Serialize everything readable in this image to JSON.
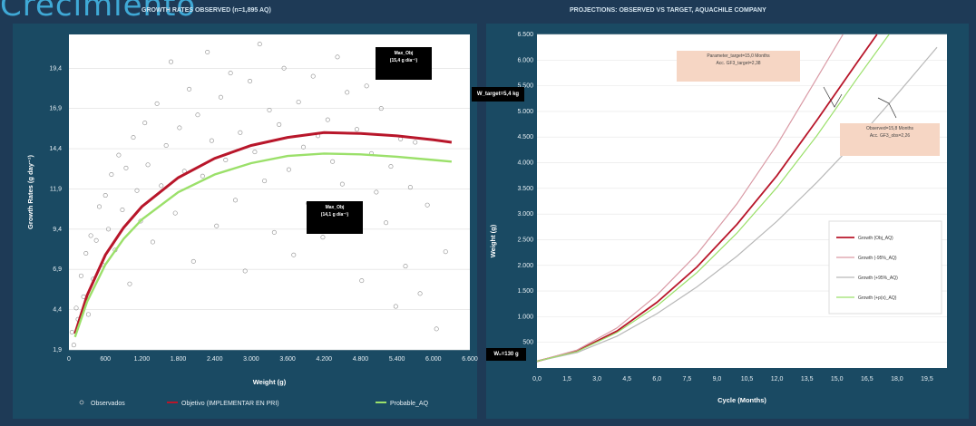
{
  "header": {
    "title": "Crecimiento"
  },
  "chart_data": [
    {
      "type": "scatter",
      "title": "GROWTH RATES OBSERVED (n=1,895 AQ)",
      "xlabel": "Weight (g)",
      "ylabel": "Growth Rates (g day⁻¹)",
      "xlim": [
        0,
        6600
      ],
      "ylim": [
        1.9,
        21.5
      ],
      "x_ticks": [
        "0",
        "600",
        "1.200",
        "1.800",
        "2.400",
        "3.000",
        "3.600",
        "4.200",
        "4.800",
        "5.400",
        "6.000",
        "6.600"
      ],
      "y_ticks": [
        "1,9",
        "4,4",
        "6,9",
        "9,4",
        "11,9",
        "14,4",
        "16,9",
        "19,4"
      ],
      "legend_position": "bottom",
      "series": [
        {
          "name": "Observados",
          "kind": "scatter",
          "color": "#cfcfcf",
          "points": [
            [
              50,
              3.0
            ],
            [
              80,
              2.2
            ],
            [
              120,
              4.5
            ],
            [
              150,
              3.8
            ],
            [
              200,
              6.5
            ],
            [
              240,
              5.2
            ],
            [
              280,
              7.9
            ],
            [
              320,
              4.1
            ],
            [
              360,
              9.0
            ],
            [
              400,
              6.3
            ],
            [
              450,
              8.7
            ],
            [
              500,
              10.8
            ],
            [
              550,
              7.2
            ],
            [
              600,
              11.5
            ],
            [
              650,
              9.4
            ],
            [
              700,
              12.8
            ],
            [
              760,
              8.1
            ],
            [
              820,
              14.0
            ],
            [
              880,
              10.6
            ],
            [
              940,
              13.2
            ],
            [
              1000,
              6.0
            ],
            [
              1060,
              15.1
            ],
            [
              1120,
              11.8
            ],
            [
              1180,
              9.9
            ],
            [
              1250,
              16.0
            ],
            [
              1300,
              13.4
            ],
            [
              1380,
              8.6
            ],
            [
              1450,
              17.2
            ],
            [
              1520,
              12.1
            ],
            [
              1600,
              14.6
            ],
            [
              1680,
              19.8
            ],
            [
              1750,
              10.4
            ],
            [
              1820,
              15.7
            ],
            [
              1900,
              13.0
            ],
            [
              1980,
              18.1
            ],
            [
              2050,
              7.4
            ],
            [
              2120,
              16.5
            ],
            [
              2200,
              12.7
            ],
            [
              2280,
              20.4
            ],
            [
              2350,
              14.9
            ],
            [
              2430,
              9.6
            ],
            [
              2500,
              17.6
            ],
            [
              2580,
              13.7
            ],
            [
              2660,
              19.1
            ],
            [
              2740,
              11.2
            ],
            [
              2820,
              15.4
            ],
            [
              2900,
              6.8
            ],
            [
              2980,
              18.6
            ],
            [
              3060,
              14.2
            ],
            [
              3140,
              20.9
            ],
            [
              3220,
              12.4
            ],
            [
              3300,
              16.8
            ],
            [
              3380,
              9.2
            ],
            [
              3460,
              15.9
            ],
            [
              3540,
              19.4
            ],
            [
              3620,
              13.1
            ],
            [
              3700,
              7.8
            ],
            [
              3780,
              17.3
            ],
            [
              3860,
              14.5
            ],
            [
              3940,
              11.0
            ],
            [
              4020,
              18.9
            ],
            [
              4100,
              15.2
            ],
            [
              4180,
              8.9
            ],
            [
              4260,
              16.2
            ],
            [
              4340,
              13.6
            ],
            [
              4420,
              20.1
            ],
            [
              4500,
              12.2
            ],
            [
              4580,
              17.9
            ],
            [
              4660,
              10.1
            ],
            [
              4740,
              15.6
            ],
            [
              4820,
              6.2
            ],
            [
              4900,
              18.3
            ],
            [
              4980,
              14.1
            ],
            [
              5060,
              11.7
            ],
            [
              5140,
              16.9
            ],
            [
              5220,
              9.8
            ],
            [
              5300,
              13.3
            ],
            [
              5380,
              4.6
            ],
            [
              5460,
              15.0
            ],
            [
              5540,
              7.1
            ],
            [
              5620,
              12.0
            ],
            [
              5700,
              14.8
            ],
            [
              5780,
              5.4
            ],
            [
              5900,
              10.9
            ],
            [
              6050,
              3.2
            ],
            [
              6200,
              8.0
            ]
          ]
        },
        {
          "name": "Objetivo (IMPLEMENTAR EN PRI)",
          "kind": "line",
          "color": "#b8162a",
          "points": [
            [
              100,
              2.9
            ],
            [
              300,
              5.3
            ],
            [
              600,
              7.8
            ],
            [
              900,
              9.5
            ],
            [
              1200,
              10.8
            ],
            [
              1800,
              12.6
            ],
            [
              2400,
              13.8
            ],
            [
              3000,
              14.6
            ],
            [
              3600,
              15.1
            ],
            [
              4200,
              15.4
            ],
            [
              4800,
              15.35
            ],
            [
              5400,
              15.2
            ],
            [
              6000,
              14.95
            ],
            [
              6300,
              14.8
            ]
          ]
        },
        {
          "name": "Probable_AQ",
          "kind": "line",
          "color": "#9be06a",
          "points": [
            [
              100,
              2.7
            ],
            [
              300,
              4.9
            ],
            [
              600,
              7.2
            ],
            [
              900,
              8.8
            ],
            [
              1200,
              10.0
            ],
            [
              1800,
              11.7
            ],
            [
              2400,
              12.8
            ],
            [
              3000,
              13.5
            ],
            [
              3600,
              13.95
            ],
            [
              4200,
              14.1
            ],
            [
              4800,
              14.05
            ],
            [
              5400,
              13.9
            ],
            [
              6000,
              13.7
            ],
            [
              6300,
              13.6
            ]
          ]
        }
      ],
      "annotations": [
        {
          "line1": "Max_Obj",
          "line2": "(15,4 g día⁻¹)"
        },
        {
          "line1": "Max_Obj",
          "line2": "(14,1 g día⁻¹)"
        }
      ]
    },
    {
      "type": "line",
      "title": "PROJECTIONS: OBSERVED VS TARGET, AQUACHILE COMPANY",
      "xlabel": "Cycle (Months)",
      "ylabel": "Weight (g)",
      "xlim": [
        0,
        20.5
      ],
      "ylim": [
        0,
        6500
      ],
      "x_ticks": [
        "0,0",
        "1,5",
        "3,0",
        "4,5",
        "6,0",
        "7,5",
        "9,0",
        "10,5",
        "12,0",
        "13,5",
        "15,0",
        "16,5",
        "18,0",
        "19,5"
      ],
      "y_ticks": [
        "500",
        "1.000",
        "1.500",
        "2.000",
        "2.500",
        "3.000",
        "3.500",
        "4.000",
        "4.500",
        "5.000",
        "5.500",
        "6.000",
        "6.500"
      ],
      "legend_position": "right",
      "series": [
        {
          "name": "Growth (Obj_AQ)",
          "color": "#b8162a",
          "points": [
            [
              0,
              130
            ],
            [
              2,
              330
            ],
            [
              4,
              720
            ],
            [
              6,
              1280
            ],
            [
              8,
              1970
            ],
            [
              10,
              2800
            ],
            [
              12,
              3750
            ],
            [
              14,
              4830
            ],
            [
              16,
              5950
            ],
            [
              17,
              6500
            ]
          ]
        },
        {
          "name": "Growth (-95%_AQ)",
          "color": "#d99aa5",
          "points": [
            [
              0,
              130
            ],
            [
              2,
              350
            ],
            [
              4,
              780
            ],
            [
              6,
              1420
            ],
            [
              8,
              2220
            ],
            [
              10,
              3200
            ],
            [
              12,
              4350
            ],
            [
              14,
              5650
            ],
            [
              15.3,
              6500
            ]
          ]
        },
        {
          "name": "Growth (+95%_AQ)",
          "color": "#b9b9b9",
          "points": [
            [
              0,
              130
            ],
            [
              2,
              300
            ],
            [
              4,
              620
            ],
            [
              6,
              1060
            ],
            [
              8,
              1580
            ],
            [
              10,
              2180
            ],
            [
              12,
              2860
            ],
            [
              14,
              3620
            ],
            [
              16,
              4440
            ],
            [
              18,
              5330
            ],
            [
              20,
              6250
            ]
          ]
        },
        {
          "name": "Growth (+p(x)_AQ)",
          "color": "#9be06a",
          "points": [
            [
              0,
              130
            ],
            [
              2,
              320
            ],
            [
              4,
              690
            ],
            [
              6,
              1210
            ],
            [
              8,
              1860
            ],
            [
              10,
              2630
            ],
            [
              12,
              3520
            ],
            [
              14,
              4530
            ],
            [
              16,
              5640
            ],
            [
              17.6,
              6500
            ]
          ]
        }
      ],
      "target_weight_label": "W_target=5,4 kg",
      "initial_weight_label": "W₀=130 g",
      "annotations": [
        {
          "line1": "Parameter_target=15,0 Months",
          "line2": "Acc. GF3_target=2,38"
        },
        {
          "line1": "Observed=15,8 Months",
          "line2": "Acc. GF3_obs=2,26"
        }
      ]
    }
  ]
}
